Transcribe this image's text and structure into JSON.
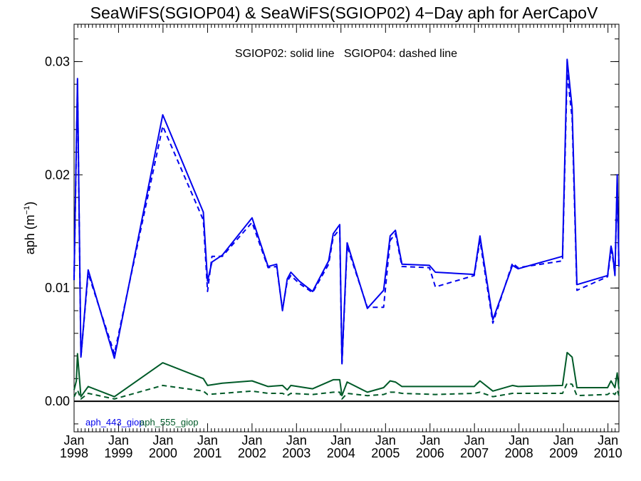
{
  "chart_data": {
    "type": "line",
    "title": "SeaWiFS(SGIOP04) & SeaWiFS(SGIOP02) 4−Day aph for AerCapoV",
    "annotation": "SGIOP02: solid line   SGIOP04: dashed line",
    "ylabel_main": "aph (m",
    "ylabel_sup": "−1",
    "ylabel_close": ")",
    "xlabel": "",
    "x_range": [
      "1998-01-01",
      "2010-04-01"
    ],
    "ylim": [
      -0.0027,
      0.0333
    ],
    "y_ticks": [
      0.0,
      0.01,
      0.02,
      0.03
    ],
    "y_tick_labels": [
      "0.00",
      "0.01",
      "0.02",
      "0.03"
    ],
    "x_ticks": [
      {
        "date": "1998-01-01",
        "month": "Jan",
        "year": "1998"
      },
      {
        "date": "1999-01-01",
        "month": "Jan",
        "year": "1999"
      },
      {
        "date": "2000-01-01",
        "month": "Jan",
        "year": "2000"
      },
      {
        "date": "2001-01-01",
        "month": "Jan",
        "year": "2001"
      },
      {
        "date": "2002-01-01",
        "month": "Jan",
        "year": "2002"
      },
      {
        "date": "2003-01-01",
        "month": "Jan",
        "year": "2003"
      },
      {
        "date": "2004-01-01",
        "month": "Jan",
        "year": "2004"
      },
      {
        "date": "2005-01-01",
        "month": "Jan",
        "year": "2005"
      },
      {
        "date": "2006-01-01",
        "month": "Jan",
        "year": "2006"
      },
      {
        "date": "2007-01-01",
        "month": "Jan",
        "year": "2007"
      },
      {
        "date": "2008-01-01",
        "month": "Jan",
        "year": "2008"
      },
      {
        "date": "2009-01-01",
        "month": "Jan",
        "year": "2009"
      },
      {
        "date": "2010-01-01",
        "month": "Jan",
        "year": "2010"
      }
    ],
    "legend": [
      {
        "label": "aph_443_giop",
        "color": "#0000ee"
      },
      {
        "label": "aph_555_giop",
        "color": "#005a28"
      }
    ],
    "series": [
      {
        "name": "aph_443_giop",
        "color": "#0000ee",
        "dash": false,
        "points": [
          [
            "1998-01-01",
            0.0109
          ],
          [
            "1998-01-29",
            0.0285
          ],
          [
            "1998-02-26",
            0.0039
          ],
          [
            "1998-04-27",
            0.0116
          ],
          [
            "1998-11-28",
            0.0038
          ],
          [
            "1999-12-30",
            0.0253
          ],
          [
            "2000-11-27",
            0.0167
          ],
          [
            "2001-01-01",
            0.0106
          ],
          [
            "2001-02-06",
            0.0123
          ],
          [
            "2001-05-02",
            0.0129
          ],
          [
            "2002-01-01",
            0.0162
          ],
          [
            "2002-05-13",
            0.0119
          ],
          [
            "2002-07-22",
            0.0121
          ],
          [
            "2002-09-08",
            0.008
          ],
          [
            "2002-10-17",
            0.0108
          ],
          [
            "2002-11-16",
            0.0114
          ],
          [
            "2003-01-25",
            0.0106
          ],
          [
            "2003-05-13",
            0.0097
          ],
          [
            "2003-09-22",
            0.0124
          ],
          [
            "2003-10-30",
            0.0148
          ],
          [
            "2003-12-22",
            0.0156
          ],
          [
            "2004-01-09",
            0.0034
          ],
          [
            "2004-02-21",
            0.014
          ],
          [
            "2004-08-05",
            0.0082
          ],
          [
            "2004-12-16",
            0.0098
          ],
          [
            "2005-02-08",
            0.0146
          ],
          [
            "2005-03-23",
            0.0151
          ],
          [
            "2005-05-16",
            0.0121
          ],
          [
            "2005-12-27",
            0.012
          ],
          [
            "2006-02-14",
            0.0114
          ],
          [
            "2006-12-30",
            0.0112
          ],
          [
            "2007-02-15",
            0.0146
          ],
          [
            "2007-06-01",
            0.0072
          ],
          [
            "2007-11-09",
            0.012
          ],
          [
            "2007-12-25",
            0.0117
          ],
          [
            "2008-12-24",
            0.0128
          ],
          [
            "2009-01-31",
            0.0302
          ],
          [
            "2009-03-13",
            0.0259
          ],
          [
            "2009-04-21",
            0.0103
          ],
          [
            "2009-12-29",
            0.0111
          ],
          [
            "2010-01-26",
            0.0137
          ],
          [
            "2010-02-08",
            0.0131
          ],
          [
            "2010-02-27",
            0.0111
          ],
          [
            "2010-03-18",
            0.02
          ],
          [
            "2010-04-01",
            0.0119
          ]
        ]
      },
      {
        "name": "aph_443_giop",
        "color": "#0000ee",
        "dash": true,
        "points": [
          [
            "1998-01-01",
            0.0107
          ],
          [
            "1998-01-29",
            0.028
          ],
          [
            "1998-02-26",
            0.0039
          ],
          [
            "1998-04-27",
            0.0113
          ],
          [
            "1998-11-28",
            0.0042
          ],
          [
            "1999-12-30",
            0.0243
          ],
          [
            "2000-11-27",
            0.016
          ],
          [
            "2001-01-01",
            0.0097
          ],
          [
            "2001-02-06",
            0.0128
          ],
          [
            "2001-05-02",
            0.0128
          ],
          [
            "2002-01-01",
            0.0158
          ],
          [
            "2002-05-13",
            0.0118
          ],
          [
            "2002-07-22",
            0.0119
          ],
          [
            "2002-09-08",
            0.0081
          ],
          [
            "2002-10-17",
            0.0106
          ],
          [
            "2002-11-16",
            0.0111
          ],
          [
            "2003-01-25",
            0.0104
          ],
          [
            "2003-05-13",
            0.0096
          ],
          [
            "2003-09-22",
            0.0121
          ],
          [
            "2003-10-30",
            0.0145
          ],
          [
            "2003-12-22",
            0.0152
          ],
          [
            "2004-01-09",
            0.0032
          ],
          [
            "2004-02-21",
            0.0137
          ],
          [
            "2004-08-05",
            0.0083
          ],
          [
            "2004-12-16",
            0.0083
          ],
          [
            "2005-02-08",
            0.0142
          ],
          [
            "2005-03-23",
            0.0148
          ],
          [
            "2005-05-16",
            0.0119
          ],
          [
            "2005-12-27",
            0.0118
          ],
          [
            "2006-02-14",
            0.0101
          ],
          [
            "2006-12-30",
            0.0111
          ],
          [
            "2007-02-15",
            0.0142
          ],
          [
            "2007-06-01",
            0.0069
          ],
          [
            "2007-11-09",
            0.0122
          ],
          [
            "2007-12-25",
            0.0118
          ],
          [
            "2008-12-24",
            0.0124
          ],
          [
            "2009-01-31",
            0.029
          ],
          [
            "2009-03-13",
            0.025
          ],
          [
            "2009-04-21",
            0.0098
          ],
          [
            "2009-12-29",
            0.011
          ],
          [
            "2010-01-26",
            0.0133
          ],
          [
            "2010-02-08",
            0.0128
          ],
          [
            "2010-02-27",
            0.0112
          ],
          [
            "2010-03-18",
            0.0194
          ],
          [
            "2010-04-01",
            0.0118
          ]
        ]
      },
      {
        "name": "aph_555_giop",
        "color": "#005a28",
        "dash": false,
        "points": [
          [
            "1998-01-01",
            0.001
          ],
          [
            "1998-01-20",
            0.0018
          ],
          [
            "1998-01-29",
            0.0042
          ],
          [
            "1998-02-26",
            0.0004
          ],
          [
            "1998-04-27",
            0.0013
          ],
          [
            "1998-11-28",
            0.0004
          ],
          [
            "1999-12-30",
            0.0034
          ],
          [
            "2000-11-27",
            0.002
          ],
          [
            "2001-01-01",
            0.0014
          ],
          [
            "2001-05-02",
            0.0016
          ],
          [
            "2002-01-01",
            0.0018
          ],
          [
            "2002-05-13",
            0.0013
          ],
          [
            "2002-09-08",
            0.0014
          ],
          [
            "2002-10-17",
            0.001
          ],
          [
            "2002-11-16",
            0.0014
          ],
          [
            "2003-05-13",
            0.0011
          ],
          [
            "2003-10-30",
            0.0019
          ],
          [
            "2003-12-22",
            0.0019
          ],
          [
            "2004-01-09",
            0.0005
          ],
          [
            "2004-02-21",
            0.0017
          ],
          [
            "2004-08-05",
            0.0008
          ],
          [
            "2004-12-16",
            0.0012
          ],
          [
            "2005-02-08",
            0.0018
          ],
          [
            "2005-03-23",
            0.0017
          ],
          [
            "2005-05-16",
            0.0013
          ],
          [
            "2005-12-27",
            0.0013
          ],
          [
            "2006-02-14",
            0.0013
          ],
          [
            "2006-12-30",
            0.0013
          ],
          [
            "2007-02-15",
            0.0018
          ],
          [
            "2007-06-01",
            0.0009
          ],
          [
            "2007-11-09",
            0.0014
          ],
          [
            "2007-12-25",
            0.0013
          ],
          [
            "2008-12-24",
            0.0014
          ],
          [
            "2009-01-31",
            0.0043
          ],
          [
            "2009-03-13",
            0.0039
          ],
          [
            "2009-04-21",
            0.0012
          ],
          [
            "2009-12-29",
            0.0012
          ],
          [
            "2010-01-26",
            0.0018
          ],
          [
            "2010-02-27",
            0.0012
          ],
          [
            "2010-03-18",
            0.0025
          ],
          [
            "2010-04-01",
            0.0011
          ]
        ]
      },
      {
        "name": "aph_555_giop",
        "color": "#005a28",
        "dash": true,
        "points": [
          [
            "1998-01-01",
            0.0004
          ],
          [
            "1998-01-29",
            0.001
          ],
          [
            "1998-02-26",
            0.0002
          ],
          [
            "1998-04-27",
            0.0007
          ],
          [
            "1998-11-28",
            0.0002
          ],
          [
            "1999-12-30",
            0.0014
          ],
          [
            "2000-11-27",
            0.0009
          ],
          [
            "2001-01-01",
            0.0006
          ],
          [
            "2001-05-02",
            0.0007
          ],
          [
            "2002-01-01",
            0.0009
          ],
          [
            "2002-05-13",
            0.0007
          ],
          [
            "2002-09-08",
            0.0007
          ],
          [
            "2002-10-17",
            0.0005
          ],
          [
            "2002-11-16",
            0.0007
          ],
          [
            "2003-05-13",
            0.0006
          ],
          [
            "2003-10-30",
            0.0008
          ],
          [
            "2003-12-22",
            0.0008
          ],
          [
            "2004-01-09",
            0.0002
          ],
          [
            "2004-02-21",
            0.0007
          ],
          [
            "2004-08-05",
            0.0005
          ],
          [
            "2004-12-16",
            0.0006
          ],
          [
            "2005-02-08",
            0.0008
          ],
          [
            "2005-03-23",
            0.0008
          ],
          [
            "2005-05-16",
            0.0007
          ],
          [
            "2006-02-14",
            0.0006
          ],
          [
            "2006-12-30",
            0.0007
          ],
          [
            "2007-02-15",
            0.0008
          ],
          [
            "2007-06-01",
            0.0004
          ],
          [
            "2007-11-09",
            0.0007
          ],
          [
            "2008-12-24",
            0.0007
          ],
          [
            "2009-01-31",
            0.0016
          ],
          [
            "2009-03-13",
            0.0015
          ],
          [
            "2009-04-21",
            0.0005
          ],
          [
            "2009-12-29",
            0.0006
          ],
          [
            "2010-01-26",
            0.0008
          ],
          [
            "2010-02-27",
            0.0006
          ],
          [
            "2010-03-18",
            0.001
          ],
          [
            "2010-04-01",
            0.0005
          ]
        ]
      }
    ],
    "zero_line": true,
    "grid": false,
    "legend_placement": "bottom-left"
  }
}
